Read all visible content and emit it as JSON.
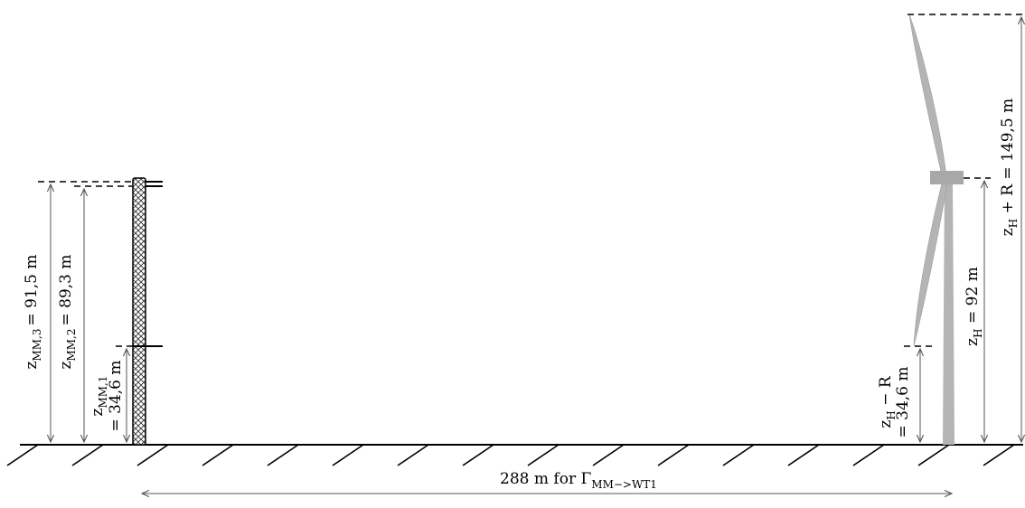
{
  "diagram": {
    "mast": {
      "heights": [
        {
          "main": "z",
          "sub": "MM,1",
          "value_text": "= 34,6 m"
        },
        {
          "main": "z",
          "sub": "MM,2",
          "value_text": "= 89,3 m"
        },
        {
          "main": "z",
          "sub": "MM,3",
          "value_text": "= 91,5 m"
        }
      ]
    },
    "turbine": {
      "lower_tip": {
        "expr_main": "z",
        "expr_sub": "H",
        "expr_rest": " − R",
        "value_text": "= 34,6 m"
      },
      "hub": {
        "main": "z",
        "sub": "H",
        "value_text": " = 92 m"
      },
      "upper_tip": {
        "main": "z",
        "sub": "H",
        "rest": " + R = 149,5 m"
      }
    },
    "distance": {
      "text": "288 m for Γ",
      "sub": "MM−>WT1"
    }
  }
}
